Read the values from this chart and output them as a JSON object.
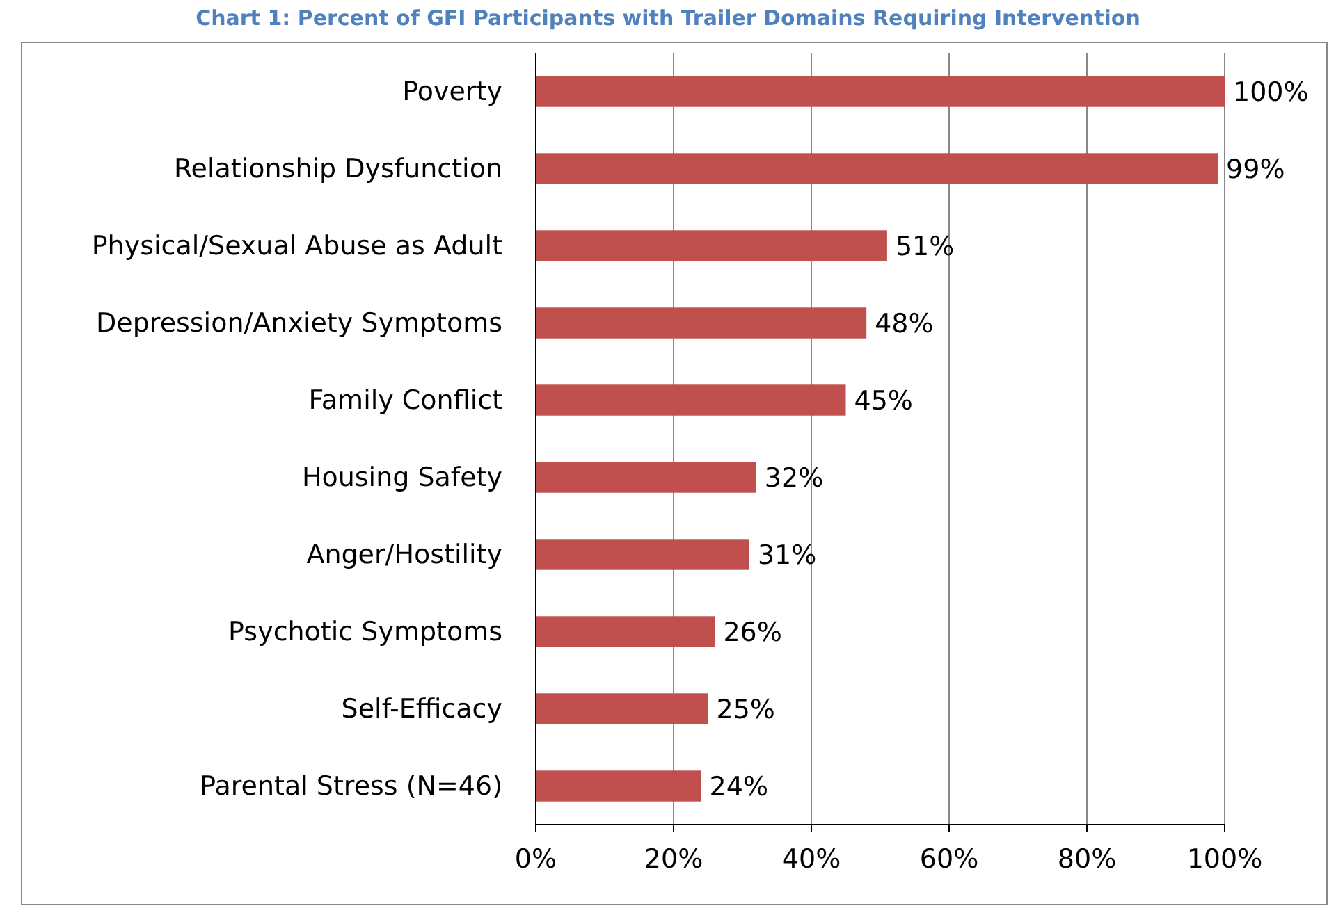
{
  "chart_data": {
    "type": "bar",
    "orientation": "horizontal",
    "title": "Chart 1: Percent of GFI Participants with Trailer Domains Requiring Intervention",
    "categories": [
      "Poverty",
      "Relationship Dysfunction",
      "Physical/Sexual Abuse as Adult",
      "Depression/Anxiety Symptoms",
      "Family Conflict",
      "Housing Safety",
      "Anger/Hostility",
      "Psychotic Symptoms",
      "Self-Efficacy",
      "Parental Stress (N=46)"
    ],
    "values": [
      100,
      99,
      51,
      48,
      45,
      32,
      31,
      26,
      25,
      24
    ],
    "value_labels": [
      "100%",
      "99%",
      "51%",
      "48%",
      "45%",
      "32%",
      "31%",
      "26%",
      "25%",
      "24%"
    ],
    "color": "#c0504d",
    "xlim": [
      0,
      100
    ],
    "xticks": [
      {
        "value": 0,
        "label": "0%"
      },
      {
        "value": 20,
        "label": "20%"
      },
      {
        "value": 40,
        "label": "40%"
      },
      {
        "value": 60,
        "label": "60%"
      },
      {
        "value": 80,
        "label": "80%"
      },
      {
        "value": 100,
        "label": "100%"
      }
    ],
    "grid": "x"
  }
}
